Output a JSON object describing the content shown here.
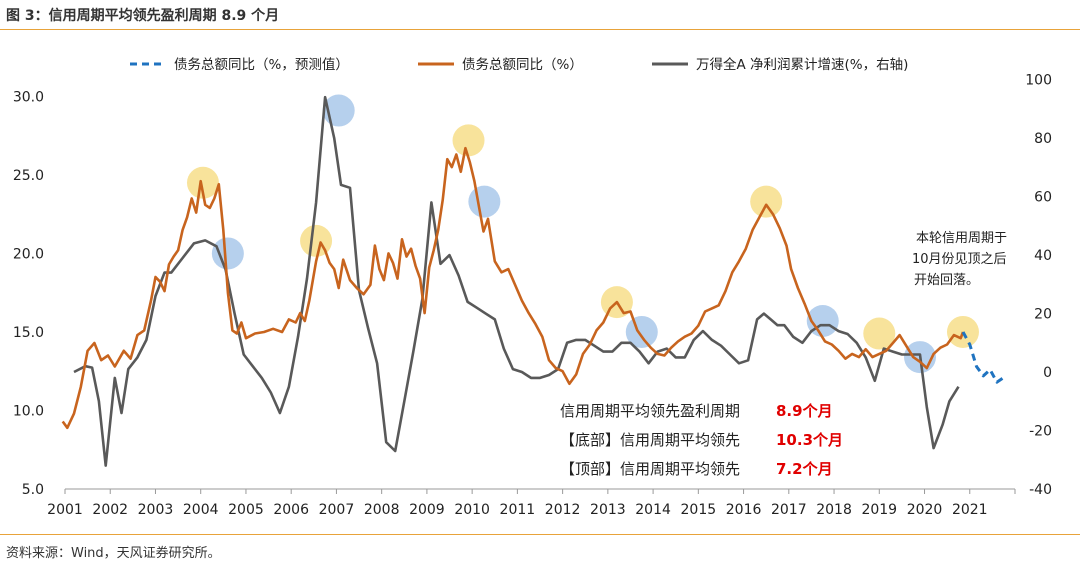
{
  "figure": {
    "title": "图 3：信用周期平均领先盈利周期 8.9 个月",
    "source": "资料来源：Wind，天风证券研究所。"
  },
  "chart_data": {
    "type": "line",
    "x_axis": {
      "range": [
        2001,
        2022
      ],
      "tick_labels": [
        "2001",
        "2002",
        "2003",
        "2004",
        "2005",
        "2006",
        "2007",
        "2008",
        "2009",
        "2010",
        "2011",
        "2012",
        "2013",
        "2014",
        "2015",
        "2016",
        "2017",
        "2018",
        "2019",
        "2020",
        "2021"
      ]
    },
    "y_axis_left": {
      "range": [
        5,
        32
      ],
      "ticks": [
        5,
        10,
        15,
        20,
        25,
        30
      ],
      "tick_labels": [
        "5.0",
        "10.0",
        "15.0",
        "20.0",
        "25.0",
        "30.0"
      ]
    },
    "y_axis_right": {
      "range": [
        -40,
        105
      ],
      "ticks": [
        -40,
        -20,
        0,
        20,
        40,
        60,
        80,
        100
      ],
      "tick_labels": [
        "-40",
        "-20",
        "0",
        "20",
        "40",
        "60",
        "80",
        "100"
      ]
    },
    "grid": false,
    "legend_position": "top",
    "series": [
      {
        "name": "债务总额同比（%，预测值）",
        "axis": "left",
        "style": "dashed",
        "color": "#1f73c0",
        "points": [
          [
            2020.85,
            15.0
          ],
          [
            2021.0,
            14.2
          ],
          [
            2021.15,
            12.8
          ],
          [
            2021.3,
            12.2
          ],
          [
            2021.45,
            12.6
          ],
          [
            2021.6,
            11.8
          ],
          [
            2021.75,
            12.1
          ]
        ]
      },
      {
        "name": "债务总额同比（%）",
        "axis": "left",
        "style": "solid",
        "color": "#c8641e",
        "points": [
          [
            2000.95,
            9.3
          ],
          [
            2001.05,
            8.9
          ],
          [
            2001.2,
            9.8
          ],
          [
            2001.35,
            11.5
          ],
          [
            2001.5,
            13.8
          ],
          [
            2001.65,
            14.3
          ],
          [
            2001.8,
            13.2
          ],
          [
            2001.95,
            13.5
          ],
          [
            2002.1,
            12.8
          ],
          [
            2002.3,
            13.8
          ],
          [
            2002.45,
            13.3
          ],
          [
            2002.6,
            14.8
          ],
          [
            2002.75,
            15.1
          ],
          [
            2002.9,
            17.0
          ],
          [
            2003.0,
            18.5
          ],
          [
            2003.1,
            18.2
          ],
          [
            2003.2,
            17.6
          ],
          [
            2003.3,
            19.3
          ],
          [
            2003.4,
            19.8
          ],
          [
            2003.5,
            20.2
          ],
          [
            2003.6,
            21.5
          ],
          [
            2003.7,
            22.3
          ],
          [
            2003.8,
            23.5
          ],
          [
            2003.9,
            22.6
          ],
          [
            2004.0,
            24.6
          ],
          [
            2004.1,
            23.1
          ],
          [
            2004.2,
            22.9
          ],
          [
            2004.3,
            23.5
          ],
          [
            2004.4,
            24.4
          ],
          [
            2004.5,
            21.5
          ],
          [
            2004.6,
            17.5
          ],
          [
            2004.7,
            15.1
          ],
          [
            2004.8,
            14.9
          ],
          [
            2004.9,
            15.6
          ],
          [
            2005.0,
            14.6
          ],
          [
            2005.2,
            14.9
          ],
          [
            2005.4,
            15.0
          ],
          [
            2005.6,
            15.2
          ],
          [
            2005.8,
            15.0
          ],
          [
            2005.95,
            15.8
          ],
          [
            2006.1,
            15.6
          ],
          [
            2006.2,
            16.2
          ],
          [
            2006.3,
            15.7
          ],
          [
            2006.4,
            17.0
          ],
          [
            2006.55,
            19.5
          ],
          [
            2006.65,
            20.7
          ],
          [
            2006.75,
            20.2
          ],
          [
            2006.85,
            19.4
          ],
          [
            2006.95,
            19.0
          ],
          [
            2007.05,
            17.8
          ],
          [
            2007.15,
            19.6
          ],
          [
            2007.3,
            18.3
          ],
          [
            2007.45,
            17.8
          ],
          [
            2007.6,
            17.4
          ],
          [
            2007.75,
            18.0
          ],
          [
            2007.85,
            20.5
          ],
          [
            2007.95,
            19.0
          ],
          [
            2008.05,
            18.3
          ],
          [
            2008.15,
            20.0
          ],
          [
            2008.25,
            19.4
          ],
          [
            2008.35,
            18.4
          ],
          [
            2008.45,
            20.9
          ],
          [
            2008.55,
            19.8
          ],
          [
            2008.65,
            20.3
          ],
          [
            2008.75,
            19.2
          ],
          [
            2008.85,
            18.4
          ],
          [
            2008.95,
            16.2
          ],
          [
            2009.05,
            19.1
          ],
          [
            2009.15,
            20.2
          ],
          [
            2009.25,
            21.5
          ],
          [
            2009.35,
            23.4
          ],
          [
            2009.45,
            26.0
          ],
          [
            2009.55,
            25.5
          ],
          [
            2009.65,
            26.3
          ],
          [
            2009.75,
            25.2
          ],
          [
            2009.85,
            26.7
          ],
          [
            2009.95,
            25.8
          ],
          [
            2010.05,
            24.6
          ],
          [
            2010.15,
            23.0
          ],
          [
            2010.25,
            21.4
          ],
          [
            2010.35,
            22.2
          ],
          [
            2010.5,
            19.5
          ],
          [
            2010.65,
            18.8
          ],
          [
            2010.8,
            19.0
          ],
          [
            2010.95,
            18.0
          ],
          [
            2011.1,
            17.0
          ],
          [
            2011.25,
            16.2
          ],
          [
            2011.4,
            15.5
          ],
          [
            2011.55,
            14.7
          ],
          [
            2011.7,
            13.2
          ],
          [
            2011.85,
            12.7
          ],
          [
            2012.0,
            12.5
          ],
          [
            2012.15,
            11.7
          ],
          [
            2012.3,
            12.3
          ],
          [
            2012.45,
            13.6
          ],
          [
            2012.6,
            14.2
          ],
          [
            2012.75,
            15.1
          ],
          [
            2012.9,
            15.6
          ],
          [
            2013.05,
            16.5
          ],
          [
            2013.2,
            16.9
          ],
          [
            2013.35,
            16.2
          ],
          [
            2013.5,
            16.3
          ],
          [
            2013.65,
            15.1
          ],
          [
            2013.8,
            14.5
          ],
          [
            2013.95,
            14.0
          ],
          [
            2014.1,
            13.6
          ],
          [
            2014.25,
            13.5
          ],
          [
            2014.4,
            14.0
          ],
          [
            2014.55,
            14.4
          ],
          [
            2014.7,
            14.7
          ],
          [
            2014.85,
            14.9
          ],
          [
            2015.0,
            15.4
          ],
          [
            2015.15,
            16.3
          ],
          [
            2015.3,
            16.5
          ],
          [
            2015.45,
            16.7
          ],
          [
            2015.6,
            17.6
          ],
          [
            2015.75,
            18.8
          ],
          [
            2015.9,
            19.5
          ],
          [
            2016.05,
            20.3
          ],
          [
            2016.2,
            21.5
          ],
          [
            2016.35,
            22.3
          ],
          [
            2016.5,
            23.1
          ],
          [
            2016.65,
            22.5
          ],
          [
            2016.8,
            21.6
          ],
          [
            2016.95,
            20.5
          ],
          [
            2017.05,
            19.0
          ],
          [
            2017.2,
            17.8
          ],
          [
            2017.35,
            16.8
          ],
          [
            2017.5,
            15.7
          ],
          [
            2017.65,
            15.1
          ],
          [
            2017.8,
            14.4
          ],
          [
            2017.95,
            14.2
          ],
          [
            2018.1,
            13.8
          ],
          [
            2018.25,
            13.3
          ],
          [
            2018.4,
            13.6
          ],
          [
            2018.55,
            13.4
          ],
          [
            2018.7,
            13.9
          ],
          [
            2018.85,
            13.4
          ],
          [
            2019.0,
            13.6
          ],
          [
            2019.15,
            13.8
          ],
          [
            2019.3,
            14.3
          ],
          [
            2019.45,
            14.8
          ],
          [
            2019.6,
            14.1
          ],
          [
            2019.75,
            13.4
          ],
          [
            2019.9,
            13.1
          ],
          [
            2020.05,
            12.7
          ],
          [
            2020.2,
            13.6
          ],
          [
            2020.35,
            14.0
          ],
          [
            2020.5,
            14.2
          ],
          [
            2020.65,
            14.8
          ],
          [
            2020.8,
            14.6
          ],
          [
            2020.85,
            15.0
          ]
        ]
      },
      {
        "name": "万得全A 净利润累计增速(%，右轴)",
        "axis": "right",
        "style": "solid",
        "color": "#595959",
        "points": [
          [
            2001.2,
            0
          ],
          [
            2001.45,
            2
          ],
          [
            2001.6,
            1.5
          ],
          [
            2001.75,
            -10
          ],
          [
            2001.9,
            -32
          ],
          [
            2002.1,
            -2
          ],
          [
            2002.25,
            -14
          ],
          [
            2002.4,
            1
          ],
          [
            2002.6,
            5
          ],
          [
            2002.8,
            11
          ],
          [
            2003.0,
            26
          ],
          [
            2003.2,
            34
          ],
          [
            2003.35,
            34
          ],
          [
            2003.6,
            39
          ],
          [
            2003.85,
            44
          ],
          [
            2004.1,
            45
          ],
          [
            2004.35,
            43
          ],
          [
            2004.55,
            35
          ],
          [
            2004.75,
            20
          ],
          [
            2004.95,
            6
          ],
          [
            2005.15,
            2
          ],
          [
            2005.35,
            -2
          ],
          [
            2005.55,
            -7
          ],
          [
            2005.75,
            -14
          ],
          [
            2005.95,
            -5
          ],
          [
            2006.15,
            12
          ],
          [
            2006.35,
            32
          ],
          [
            2006.55,
            58
          ],
          [
            2006.75,
            94
          ],
          [
            2006.95,
            80
          ],
          [
            2007.1,
            64
          ],
          [
            2007.3,
            63
          ],
          [
            2007.5,
            28
          ],
          [
            2007.7,
            15
          ],
          [
            2007.9,
            3
          ],
          [
            2008.1,
            -24
          ],
          [
            2008.3,
            -27
          ],
          [
            2008.5,
            -10
          ],
          [
            2008.7,
            7
          ],
          [
            2008.9,
            25
          ],
          [
            2009.1,
            58
          ],
          [
            2009.3,
            37
          ],
          [
            2009.5,
            40
          ],
          [
            2009.7,
            33
          ],
          [
            2009.9,
            24
          ],
          [
            2010.1,
            22
          ],
          [
            2010.3,
            20
          ],
          [
            2010.5,
            18
          ],
          [
            2010.7,
            8
          ],
          [
            2010.9,
            1
          ],
          [
            2011.1,
            0
          ],
          [
            2011.3,
            -2
          ],
          [
            2011.5,
            -2
          ],
          [
            2011.7,
            -1
          ],
          [
            2011.9,
            1
          ],
          [
            2012.1,
            10
          ],
          [
            2012.3,
            11
          ],
          [
            2012.5,
            11
          ],
          [
            2012.7,
            9
          ],
          [
            2012.9,
            7
          ],
          [
            2013.1,
            7
          ],
          [
            2013.3,
            10
          ],
          [
            2013.5,
            10
          ],
          [
            2013.7,
            7
          ],
          [
            2013.9,
            3
          ],
          [
            2014.1,
            7
          ],
          [
            2014.3,
            8
          ],
          [
            2014.5,
            5
          ],
          [
            2014.7,
            5
          ],
          [
            2014.9,
            11
          ],
          [
            2015.1,
            14
          ],
          [
            2015.3,
            11
          ],
          [
            2015.5,
            9
          ],
          [
            2015.7,
            6
          ],
          [
            2015.9,
            3
          ],
          [
            2016.1,
            4
          ],
          [
            2016.3,
            18
          ],
          [
            2016.45,
            20
          ],
          [
            2016.6,
            18
          ],
          [
            2016.75,
            16
          ],
          [
            2016.9,
            16
          ],
          [
            2017.1,
            12
          ],
          [
            2017.3,
            10
          ],
          [
            2017.5,
            14
          ],
          [
            2017.7,
            16
          ],
          [
            2017.9,
            16
          ],
          [
            2018.1,
            14
          ],
          [
            2018.3,
            13
          ],
          [
            2018.5,
            10
          ],
          [
            2018.7,
            5
          ],
          [
            2018.9,
            -3
          ],
          [
            2019.1,
            8
          ],
          [
            2019.3,
            7
          ],
          [
            2019.5,
            6
          ],
          [
            2019.7,
            6
          ],
          [
            2019.9,
            6
          ],
          [
            2020.05,
            -12
          ],
          [
            2020.2,
            -26
          ],
          [
            2020.4,
            -18
          ],
          [
            2020.55,
            -10
          ],
          [
            2020.75,
            -5
          ]
        ]
      }
    ],
    "highlights": [
      {
        "x": 2004.05,
        "y": 24.5,
        "color": "#f7de8a"
      },
      {
        "x": 2004.6,
        "y": 20.0,
        "color": "#a9c8ea"
      },
      {
        "x": 2006.55,
        "y": 20.8,
        "color": "#f7de8a"
      },
      {
        "x": 2007.05,
        "y": 29.1,
        "color": "#a9c8ea"
      },
      {
        "x": 2009.92,
        "y": 27.2,
        "color": "#f7de8a"
      },
      {
        "x": 2010.27,
        "y": 23.3,
        "color": "#a9c8ea"
      },
      {
        "x": 2013.2,
        "y": 16.9,
        "color": "#f7de8a"
      },
      {
        "x": 2013.75,
        "y": 15.0,
        "color": "#a9c8ea"
      },
      {
        "x": 2016.5,
        "y": 23.3,
        "color": "#f7de8a"
      },
      {
        "x": 2017.75,
        "y": 15.7,
        "color": "#a9c8ea"
      },
      {
        "x": 2019.0,
        "y": 14.9,
        "color": "#f7de8a"
      },
      {
        "x": 2019.9,
        "y": 13.4,
        "color": "#a9c8ea"
      },
      {
        "x": 2020.85,
        "y": 15.0,
        "color": "#f7de8a"
      }
    ],
    "annotation": [
      "本轮信用周期于",
      "10月份见顶之后",
      "开始回落。"
    ],
    "stats": [
      {
        "label": "信用周期平均领先盈利周期",
        "value": "8.9个月"
      },
      {
        "label": "【底部】信用周期平均领先",
        "value": "10.3个月"
      },
      {
        "label": "【顶部】信用周期平均领先",
        "value": "7.2个月"
      }
    ]
  }
}
